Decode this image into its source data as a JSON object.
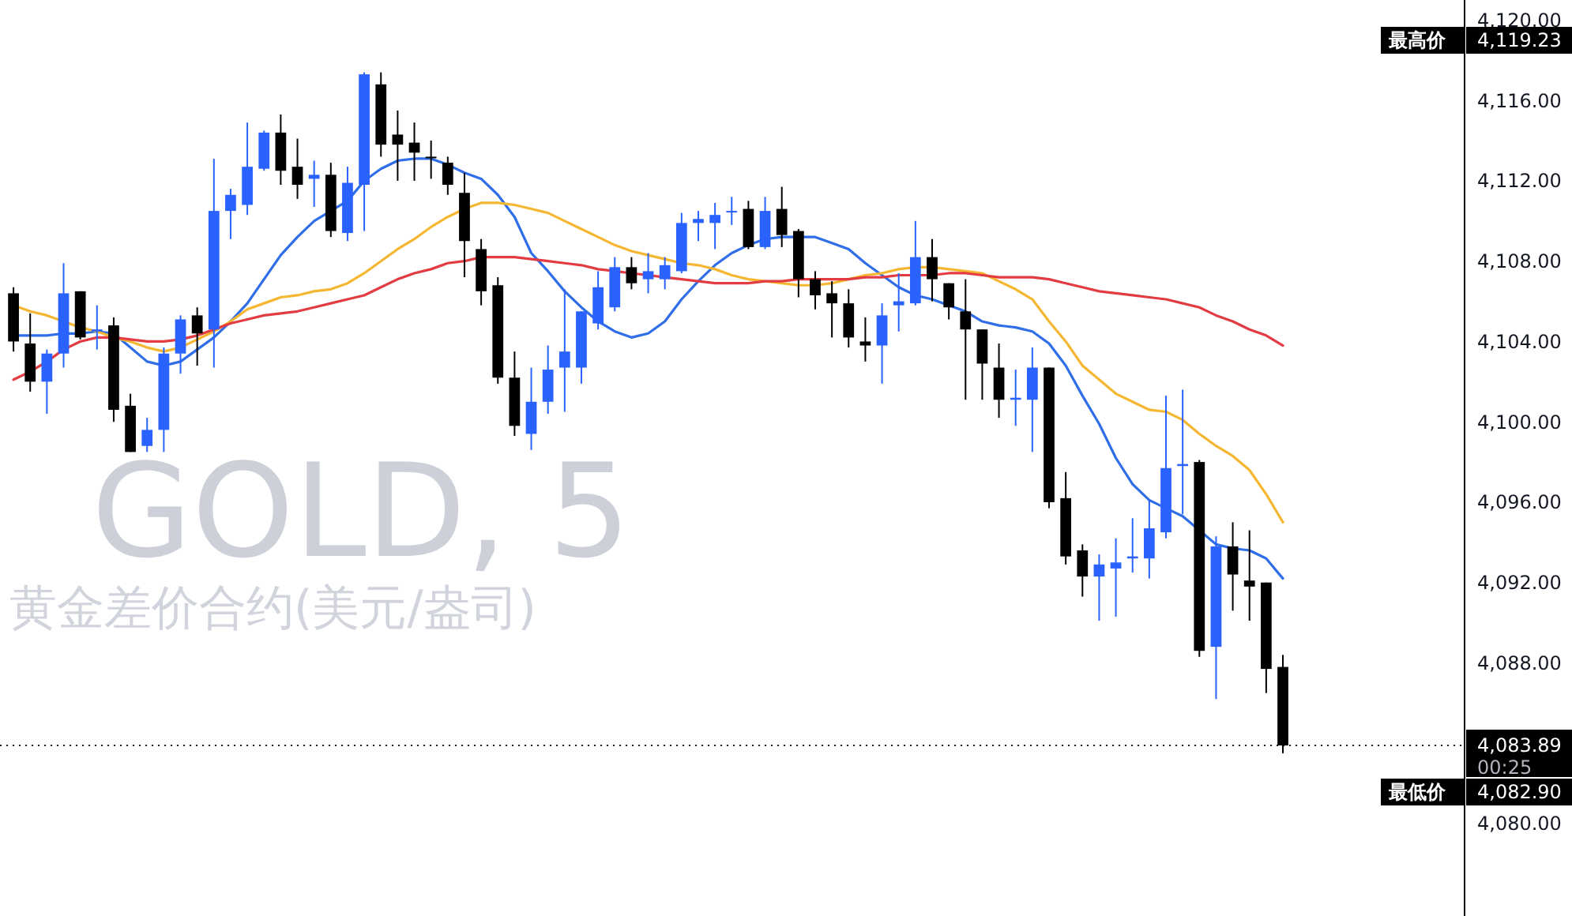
{
  "chart_data": {
    "type": "candlestick",
    "title": "GOLD, 5",
    "subtitle": "黄金差价合约(美元/盎司)",
    "categories": [
      null,
      null,
      null,
      null,
      null,
      null,
      null,
      null,
      null,
      null,
      null,
      null,
      null,
      null,
      null,
      null,
      null,
      null,
      null,
      null,
      null,
      null,
      null,
      null,
      null,
      null,
      null,
      null,
      null,
      null,
      null,
      null,
      null,
      null,
      null,
      null,
      null,
      null,
      null,
      null,
      null,
      null,
      null,
      null,
      null,
      null,
      null,
      null,
      null,
      null,
      null,
      null,
      null,
      null,
      null,
      null,
      null,
      null,
      null,
      null,
      null,
      null,
      null,
      null,
      null,
      null,
      null,
      null,
      null,
      null,
      null,
      null,
      null,
      null,
      null,
      null,
      null
    ],
    "ohlc": [
      [
        4106.4,
        4106.7,
        4103.5,
        4104.0
      ],
      [
        4103.9,
        4105.4,
        4101.5,
        4102.0
      ],
      [
        4102.0,
        4103.6,
        4100.4,
        4103.4
      ],
      [
        4103.4,
        4107.9,
        4102.7,
        4106.4
      ],
      [
        4106.5,
        4106.5,
        4104.1,
        4104.2
      ],
      [
        4104.5,
        4105.8,
        4103.6,
        4104.6
      ],
      [
        4104.8,
        4105.2,
        4100.0,
        4100.6
      ],
      [
        4100.8,
        4101.4,
        4098.5,
        4098.5
      ],
      [
        4098.8,
        4100.2,
        4098.5,
        4099.6
      ],
      [
        4099.6,
        4103.7,
        4098.5,
        4103.4
      ],
      [
        4103.4,
        4105.3,
        4102.4,
        4105.1
      ],
      [
        4105.3,
        4105.7,
        4102.8,
        4104.4
      ],
      [
        4104.6,
        4113.1,
        4102.7,
        4110.5
      ],
      [
        4110.5,
        4111.6,
        4109.1,
        4111.3
      ],
      [
        4110.8,
        4114.9,
        4110.3,
        4112.7
      ],
      [
        4112.6,
        4114.5,
        4112.5,
        4114.4
      ],
      [
        4114.4,
        4115.3,
        4111.8,
        4112.5
      ],
      [
        4112.7,
        4114.1,
        4111.1,
        4111.8
      ],
      [
        4112.1,
        4113.0,
        4110.7,
        4112.3
      ],
      [
        4112.3,
        4112.9,
        4109.2,
        4109.5
      ],
      [
        4109.4,
        4112.7,
        4109.0,
        4111.9
      ],
      [
        4111.8,
        4117.4,
        4109.5,
        4117.3
      ],
      [
        4116.8,
        4117.4,
        4113.2,
        4113.8
      ],
      [
        4114.3,
        4115.5,
        4112.0,
        4113.8
      ],
      [
        4113.9,
        4114.9,
        4112.0,
        4113.4
      ],
      [
        4113.2,
        4114.0,
        4112.1,
        4113.2
      ],
      [
        4112.9,
        4113.2,
        4111.3,
        4111.8
      ],
      [
        4111.4,
        4112.4,
        4107.2,
        4109.0
      ],
      [
        4108.6,
        4109.1,
        4105.8,
        4106.5
      ],
      [
        4106.8,
        4107.2,
        4101.9,
        4102.2
      ],
      [
        4102.2,
        4103.5,
        4099.3,
        4099.8
      ],
      [
        4099.4,
        4102.7,
        4098.6,
        4101.0
      ],
      [
        4101.0,
        4103.8,
        4100.4,
        4102.6
      ],
      [
        4102.7,
        4106.6,
        4100.5,
        4103.5
      ],
      [
        4102.7,
        4105.5,
        4101.9,
        4105.5
      ],
      [
        4104.9,
        4107.5,
        4104.6,
        4106.7
      ],
      [
        4105.7,
        4108.2,
        4105.5,
        4107.7
      ],
      [
        4107.7,
        4108.2,
        4106.6,
        4106.9
      ],
      [
        4107.1,
        4108.4,
        4106.4,
        4107.5
      ],
      [
        4107.1,
        4108.2,
        4106.6,
        4107.8
      ],
      [
        4107.5,
        4110.4,
        4107.4,
        4109.9
      ],
      [
        4109.9,
        4110.5,
        4109.0,
        4110.1
      ],
      [
        4109.9,
        4110.9,
        4108.6,
        4110.3
      ],
      [
        4110.5,
        4111.2,
        4109.8,
        4110.5
      ],
      [
        4110.6,
        4111.0,
        4108.6,
        4108.7
      ],
      [
        4108.7,
        4111.2,
        4108.6,
        4110.5
      ],
      [
        4110.6,
        4111.7,
        4108.7,
        4109.3
      ],
      [
        4109.5,
        4109.6,
        4106.2,
        4107.1
      ],
      [
        4107.1,
        4107.5,
        4105.6,
        4106.3
      ],
      [
        4106.4,
        4107.0,
        4104.2,
        4105.9
      ],
      [
        4105.9,
        4106.6,
        4103.7,
        4104.2
      ],
      [
        4104.0,
        4105.2,
        4103.0,
        4103.8
      ],
      [
        4103.8,
        4105.9,
        4101.9,
        4105.3
      ],
      [
        4105.8,
        4107.4,
        4104.5,
        4106.0
      ],
      [
        4105.9,
        4110.0,
        4105.8,
        4108.2
      ],
      [
        4108.2,
        4109.1,
        4106.0,
        4107.1
      ],
      [
        4106.9,
        4106.9,
        4105.1,
        4105.7
      ],
      [
        4105.5,
        4107.1,
        4101.1,
        4104.6
      ],
      [
        4104.6,
        4104.6,
        4101.1,
        4102.9
      ],
      [
        4102.7,
        4103.9,
        4100.2,
        4101.1
      ],
      [
        4101.1,
        4102.6,
        4099.8,
        4101.2
      ],
      [
        4101.1,
        4103.7,
        4098.5,
        4102.7
      ],
      [
        4102.7,
        4102.7,
        4095.7,
        4096.0
      ],
      [
        4096.2,
        4097.5,
        4092.9,
        4093.3
      ],
      [
        4093.6,
        4093.9,
        4091.3,
        4092.3
      ],
      [
        4092.3,
        4093.4,
        4090.1,
        4092.9
      ],
      [
        4092.7,
        4094.2,
        4090.3,
        4093.0
      ],
      [
        4093.2,
        4095.2,
        4092.5,
        4093.3
      ],
      [
        4093.2,
        4096.1,
        4092.2,
        4094.7
      ],
      [
        4094.5,
        4101.3,
        4094.2,
        4097.7
      ],
      [
        4097.8,
        4101.6,
        4095.4,
        4097.9
      ],
      [
        4098.0,
        4098.1,
        4088.3,
        4088.6
      ],
      [
        4088.8,
        4094.3,
        4086.2,
        4093.8
      ],
      [
        4093.8,
        4095.0,
        4090.6,
        4092.4
      ],
      [
        4092.1,
        4094.6,
        4090.1,
        4091.8
      ],
      [
        4092.0,
        4092.0,
        4086.5,
        4087.7
      ],
      [
        4087.8,
        4088.4,
        4083.5,
        4083.89
      ]
    ],
    "colors": [
      "#000000",
      "#000000",
      "#2962ff",
      "#2962ff",
      "#000000",
      "#2962ff",
      "#000000",
      "#000000",
      "#2962ff",
      "#2962ff",
      "#2962ff",
      "#000000",
      "#2962ff",
      "#2962ff",
      "#2962ff",
      "#2962ff",
      "#000000",
      "#000000",
      "#2962ff",
      "#000000",
      "#2962ff",
      "#2962ff",
      "#000000",
      "#000000",
      "#000000",
      "#000000",
      "#000000",
      "#000000",
      "#000000",
      "#000000",
      "#000000",
      "#2962ff",
      "#2962ff",
      "#2962ff",
      "#2962ff",
      "#2962ff",
      "#2962ff",
      "#000000",
      "#2962ff",
      "#2962ff",
      "#2962ff",
      "#2962ff",
      "#2962ff",
      "#2962ff",
      "#000000",
      "#2962ff",
      "#000000",
      "#000000",
      "#000000",
      "#000000",
      "#000000",
      "#000000",
      "#2962ff",
      "#2962ff",
      "#2962ff",
      "#000000",
      "#000000",
      "#000000",
      "#000000",
      "#000000",
      "#2962ff",
      "#2962ff",
      "#000000",
      "#000000",
      "#000000",
      "#2962ff",
      "#2962ff",
      "#2962ff",
      "#2962ff",
      "#2962ff",
      "#2962ff",
      "#000000",
      "#2962ff",
      "#000000",
      "#000000",
      "#000000",
      "#000000"
    ],
    "series": [
      {
        "type": "line",
        "color": "#2f6ee8",
        "values": [
          4104.3,
          4104.3,
          4104.3,
          4104.4,
          4104.4,
          4104.5,
          4104.4,
          4103.7,
          4103.0,
          4102.8,
          4103.0,
          4103.6,
          4104.2,
          4105.0,
          4105.9,
          4107.1,
          4108.3,
          4109.2,
          4110.0,
          4110.5,
          4111.0,
          4112.0,
          4112.6,
          4113.0,
          4113.1,
          4113.1,
          4112.8,
          4112.4,
          4112.1,
          4111.3,
          4110.2,
          4108.4,
          4107.5,
          4106.5,
          4105.7,
          4105.0,
          4104.5,
          4104.2,
          4104.4,
          4105.0,
          4106.1,
          4107.0,
          4107.8,
          4108.4,
          4108.8,
          4109.1,
          4109.2,
          4109.2,
          4109.2,
          4108.9,
          4108.6,
          4107.9,
          4107.3,
          4106.7,
          4106.3,
          4106.1,
          4105.8,
          4105.5,
          4105.0,
          4104.8,
          4104.7,
          4104.5,
          4103.9,
          4102.8,
          4101.3,
          4099.9,
          4098.2,
          4096.9,
          4096.1,
          4095.7,
          4095.3,
          4094.6,
          4093.9,
          4093.7,
          4093.6,
          4093.2,
          4092.2
        ]
      },
      {
        "type": "line",
        "color": "#f5b731",
        "values": [
          4105.8,
          4105.5,
          4105.3,
          4105.0,
          4104.7,
          4104.5,
          4104.2,
          4104.0,
          4103.7,
          4103.5,
          4103.7,
          4104.1,
          4104.5,
          4105.0,
          4105.6,
          4105.9,
          4106.2,
          4106.3,
          4106.5,
          4106.6,
          4106.9,
          4107.4,
          4108.0,
          4108.6,
          4109.1,
          4109.7,
          4110.2,
          4110.6,
          4110.9,
          4110.9,
          4110.8,
          4110.6,
          4110.4,
          4110.0,
          4109.6,
          4109.2,
          4108.8,
          4108.5,
          4108.3,
          4108.1,
          4107.9,
          4107.8,
          4107.6,
          4107.3,
          4107.1,
          4107.0,
          4106.9,
          4106.8,
          4106.8,
          4106.9,
          4107.1,
          4107.3,
          4107.4,
          4107.6,
          4107.7,
          4107.7,
          4107.6,
          4107.5,
          4107.4,
          4107.0,
          4106.6,
          4106.1,
          4105.0,
          4104.0,
          4102.8,
          4102.1,
          4101.4,
          4101.0,
          4100.6,
          4100.5,
          4100.1,
          4099.4,
          4098.8,
          4098.3,
          4097.6,
          4096.4,
          4095.0
        ]
      },
      {
        "type": "line",
        "color": "#e23b42",
        "values": [
          4102.1,
          4102.5,
          4103.0,
          4103.6,
          4104.0,
          4104.2,
          4104.2,
          4104.1,
          4104.0,
          4104.0,
          4104.1,
          4104.3,
          4104.6,
          4104.9,
          4105.1,
          4105.3,
          4105.4,
          4105.5,
          4105.7,
          4105.9,
          4106.1,
          4106.3,
          4106.7,
          4107.1,
          4107.4,
          4107.6,
          4107.9,
          4108.0,
          4108.2,
          4108.2,
          4108.2,
          4108.1,
          4108.0,
          4107.9,
          4107.8,
          4107.6,
          4107.5,
          4107.4,
          4107.3,
          4107.2,
          4107.1,
          4107.0,
          4106.9,
          4106.9,
          4106.9,
          4107.0,
          4107.0,
          4107.1,
          4107.1,
          4107.1,
          4107.1,
          4107.2,
          4107.2,
          4107.3,
          4107.3,
          4107.3,
          4107.4,
          4107.4,
          4107.3,
          4107.2,
          4107.2,
          4107.2,
          4107.1,
          4106.9,
          4106.7,
          4106.5,
          4106.4,
          4106.3,
          4106.2,
          4106.1,
          4105.9,
          4105.7,
          4105.3,
          4105.0,
          4104.6,
          4104.3,
          4103.8
        ]
      }
    ],
    "ylim": [
      4075.4,
      4121.0
    ],
    "yticks": [
      {
        "value": 4080,
        "label": "4,080.00"
      },
      {
        "value": 4088,
        "label": "4,088.00"
      },
      {
        "value": 4092,
        "label": "4,092.00"
      },
      {
        "value": 4096,
        "label": "4,096.00"
      },
      {
        "value": 4100,
        "label": "4,100.00"
      },
      {
        "value": 4104,
        "label": "4,104.00"
      },
      {
        "value": 4108,
        "label": "4,108.00"
      },
      {
        "value": 4112,
        "label": "4,112.00"
      },
      {
        "value": 4116,
        "label": "4,116.00"
      },
      {
        "value": 4120,
        "label": "4,120.00"
      }
    ],
    "tick_labels": "y",
    "ref_lines": [
      {
        "axis": "y",
        "value": 4083.89,
        "label": "4,083.89",
        "line_style": "dotted",
        "color": "#000000"
      }
    ],
    "annotations": [
      "00:25",
      "最高价",
      "4,119.23",
      "最低价",
      "4,082.90"
    ]
  }
}
